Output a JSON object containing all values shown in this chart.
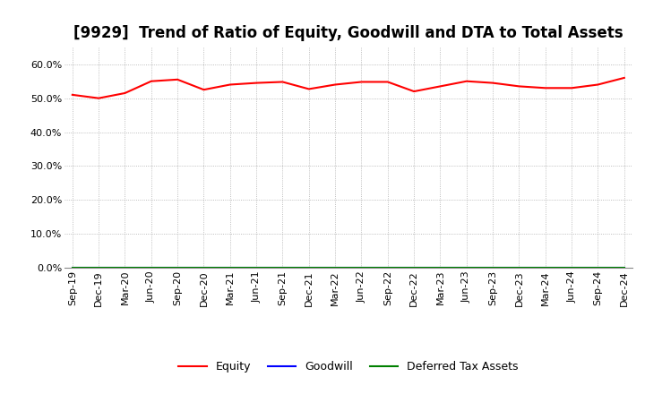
{
  "title": "[9929]  Trend of Ratio of Equity, Goodwill and DTA to Total Assets",
  "x_labels": [
    "Sep-19",
    "Dec-19",
    "Mar-20",
    "Jun-20",
    "Sep-20",
    "Dec-20",
    "Mar-21",
    "Jun-21",
    "Sep-21",
    "Dec-21",
    "Mar-22",
    "Jun-22",
    "Sep-22",
    "Dec-22",
    "Mar-23",
    "Jun-23",
    "Sep-23",
    "Dec-23",
    "Mar-24",
    "Jun-24",
    "Sep-24",
    "Dec-24"
  ],
  "equity": [
    0.51,
    0.5,
    0.515,
    0.55,
    0.555,
    0.525,
    0.54,
    0.545,
    0.548,
    0.527,
    0.54,
    0.548,
    0.548,
    0.52,
    0.535,
    0.55,
    0.545,
    0.535,
    0.53,
    0.53,
    0.54,
    0.56
  ],
  "goodwill": [
    0.0,
    0.0,
    0.0,
    0.0,
    0.0,
    0.0,
    0.0,
    0.0,
    0.0,
    0.0,
    0.0,
    0.0,
    0.0,
    0.0,
    0.0,
    0.0,
    0.0,
    0.0,
    0.0,
    0.0,
    0.0,
    0.0
  ],
  "dta": [
    0.0,
    0.0,
    0.0,
    0.0,
    0.0,
    0.0,
    0.0,
    0.0,
    0.0,
    0.0,
    0.0,
    0.0,
    0.0,
    0.0,
    0.0,
    0.0,
    0.0,
    0.0,
    0.0,
    0.0,
    0.0,
    0.0
  ],
  "equity_color": "#FF0000",
  "goodwill_color": "#0000FF",
  "dta_color": "#008000",
  "ylim": [
    0.0,
    0.65
  ],
  "yticks": [
    0.0,
    0.1,
    0.2,
    0.3,
    0.4,
    0.5,
    0.6
  ],
  "background_color": "#FFFFFF",
  "plot_bg_color": "#FFFFFF",
  "grid_color": "#888888",
  "title_fontsize": 12,
  "tick_fontsize": 8
}
